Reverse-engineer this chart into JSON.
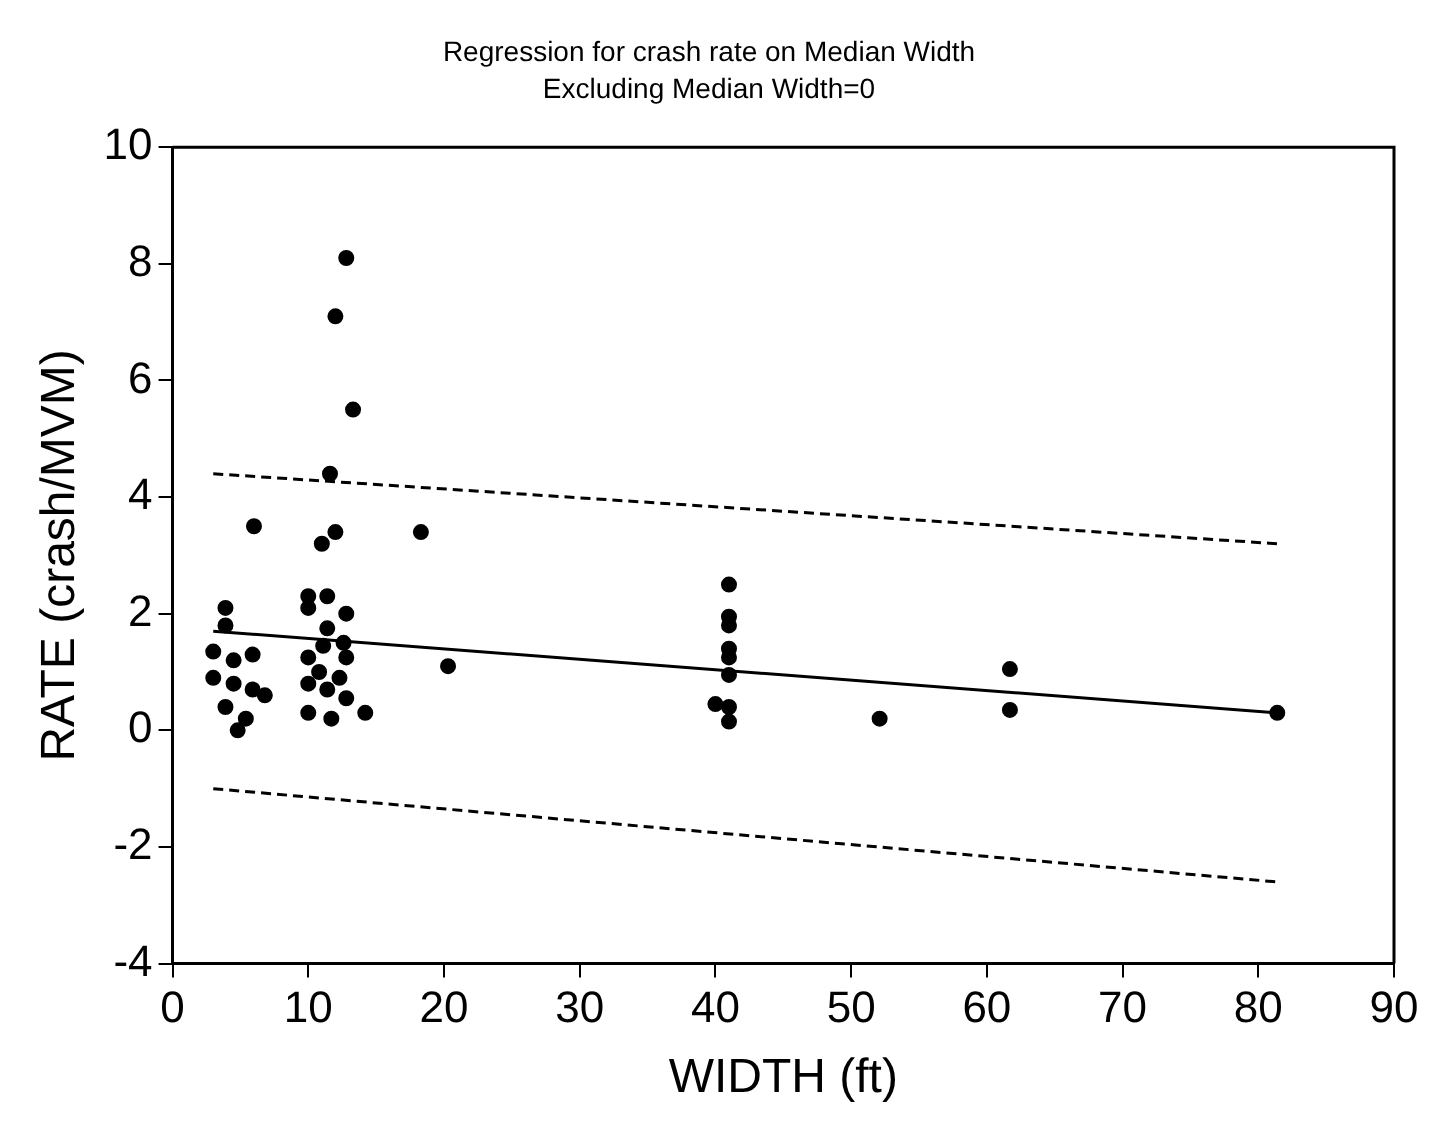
{
  "chart_data": {
    "type": "scatter",
    "title": "Regression for crash rate on Median Width",
    "subtitle": "Excluding Median Width=0",
    "xlabel": "WIDTH (ft)",
    "ylabel": "RATE (crash/MVM)",
    "xlim": [
      0,
      90
    ],
    "xticks": [
      0,
      10,
      20,
      30,
      40,
      50,
      60,
      70,
      80,
      90
    ],
    "ylim": [
      -4,
      10
    ],
    "yticks": [
      -4,
      -2,
      0,
      2,
      4,
      6,
      8,
      10
    ],
    "grid": false,
    "legend": false,
    "series": [
      {
        "marker": "circle",
        "color": "#000000",
        "x": [
          12.8,
          12.0,
          13.3,
          11.6,
          6.0,
          12.0,
          11.0,
          18.3,
          3.9,
          3.9,
          3.0,
          4.5,
          5.9,
          3.0,
          4.5,
          5.9,
          6.8,
          3.9,
          5.4,
          4.8,
          20.3,
          10.0,
          11.4,
          10.0,
          12.8,
          11.4,
          12.6,
          11.1,
          10.0,
          12.8,
          10.8,
          12.3,
          10.0,
          11.4,
          12.8,
          10.0,
          11.7,
          14.2,
          41.0,
          41.0,
          41.0,
          41.0,
          41.0,
          41.0,
          40.0,
          41.0,
          41.0,
          52.1,
          61.7,
          61.7,
          81.4
        ],
        "values": [
          8.1,
          7.1,
          5.5,
          4.4,
          3.5,
          3.4,
          3.2,
          3.4,
          2.1,
          1.8,
          1.35,
          1.2,
          1.3,
          0.9,
          0.8,
          0.7,
          0.6,
          0.4,
          0.2,
          0.0,
          1.1,
          2.3,
          2.3,
          2.1,
          2.0,
          1.75,
          1.5,
          1.45,
          1.25,
          1.25,
          1.0,
          0.9,
          0.8,
          0.7,
          0.55,
          0.3,
          0.2,
          0.3,
          2.5,
          1.95,
          1.8,
          1.4,
          1.25,
          0.95,
          0.45,
          0.4,
          0.15,
          0.2,
          1.05,
          0.35,
          0.3
        ]
      },
      {
        "type": "line",
        "color": "#000000",
        "line_style": "solid",
        "x": [
          3,
          81.4
        ],
        "values": [
          1.7,
          0.3
        ]
      },
      {
        "type": "line",
        "color": "#000000",
        "line_style": "dashed",
        "x": [
          3,
          81.4
        ],
        "values": [
          4.4,
          3.2
        ]
      },
      {
        "type": "line",
        "color": "#000000",
        "line_style": "dashed",
        "x": [
          3,
          81.4
        ],
        "values": [
          -1.0,
          -2.6
        ]
      }
    ]
  }
}
